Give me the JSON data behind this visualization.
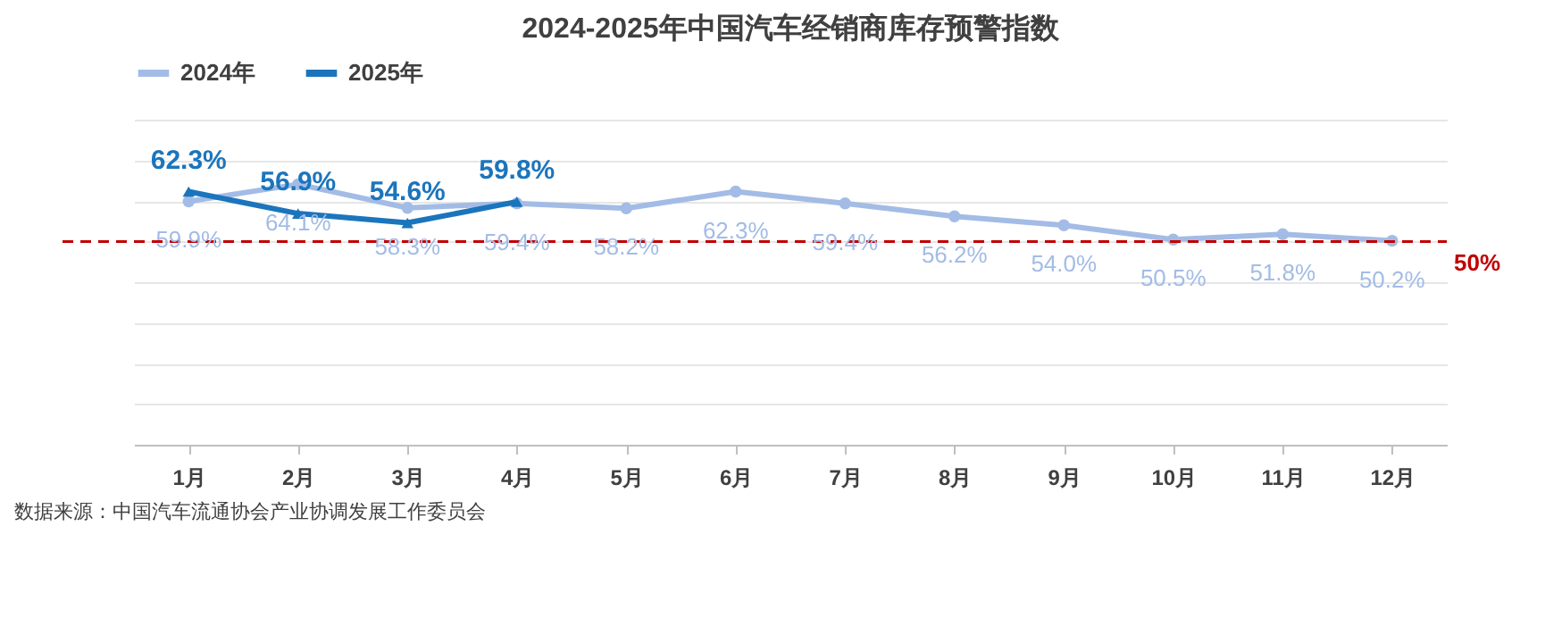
{
  "chart_data": {
    "type": "line",
    "title": "2024-2025年中国汽车经销商库存预警指数",
    "categories": [
      "1月",
      "2月",
      "3月",
      "4月",
      "5月",
      "6月",
      "7月",
      "8月",
      "9月",
      "10月",
      "11月",
      "12月"
    ],
    "series": [
      {
        "name": "2024年",
        "color": "#a3bce6",
        "marker": "circle",
        "values": [
          59.9,
          64.1,
          58.3,
          59.4,
          58.2,
          62.3,
          59.4,
          56.2,
          54.0,
          50.5,
          51.8,
          50.2
        ],
        "value_labels": [
          "59.9%",
          "64.1%",
          "58.3%",
          "59.4%",
          "58.2%",
          "62.3%",
          "59.4%",
          "56.2%",
          "54.0%",
          "50.5%",
          "51.8%",
          "50.2%"
        ]
      },
      {
        "name": "2025年",
        "color": "#1b75bc",
        "marker": "triangle",
        "values": [
          62.3,
          56.9,
          54.6,
          59.8,
          null,
          null,
          null,
          null,
          null,
          null,
          null,
          null
        ],
        "value_labels": [
          "62.3%",
          "56.9%",
          "54.6%",
          "59.8%",
          null,
          null,
          null,
          null,
          null,
          null,
          null,
          null
        ]
      }
    ],
    "ylim": [
      0,
      80
    ],
    "yticks": [
      {
        "value": 0,
        "label": null
      },
      {
        "value": 10,
        "label": null
      },
      {
        "value": 20,
        "label": null
      },
      {
        "value": 30,
        "label": null
      },
      {
        "value": 40,
        "label": null
      },
      {
        "value": 50,
        "label": null
      },
      {
        "value": 60,
        "label": null
      },
      {
        "value": 70,
        "label": null
      },
      {
        "value": 80,
        "label": null
      }
    ],
    "tick_labels": "x",
    "grid": "y",
    "legend": "top",
    "ref_lines": [
      {
        "axis": "y",
        "value": 50,
        "label": "50%",
        "color": "#c00000",
        "line_style": "dashed"
      }
    ],
    "annotations": [
      "数据来源：中国汽车流通协会产业协调发展工作委员会"
    ]
  }
}
